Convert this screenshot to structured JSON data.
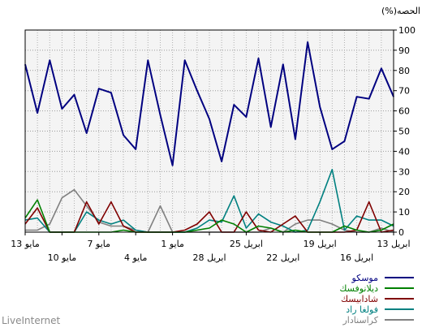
{
  "chart_data": {
    "type": "line",
    "title": "",
    "ylabel": "(%)الحصه",
    "ylim": [
      0,
      100
    ],
    "y_ticks": [
      0,
      10,
      20,
      30,
      40,
      50,
      60,
      70,
      80,
      90,
      100
    ],
    "y_axis_side": "right",
    "x_direction": "right-to-left",
    "grid": true,
    "legend_position": "bottom-right",
    "background_color": "#f4f4f4",
    "x_ticks": [
      {
        "index": 0,
        "label": "13 ابريل",
        "row": 1
      },
      {
        "index": 3,
        "label": "16 ابريل",
        "row": 2
      },
      {
        "index": 6,
        "label": "19 ابريل",
        "row": 1
      },
      {
        "index": 9,
        "label": "22 ابريل",
        "row": 2
      },
      {
        "index": 12,
        "label": "25 ابريل",
        "row": 1
      },
      {
        "index": 15,
        "label": "28 ابريل",
        "row": 2
      },
      {
        "index": 18,
        "label": "1 مايو",
        "row": 1
      },
      {
        "index": 21,
        "label": "4 مايو",
        "row": 2
      },
      {
        "index": 24,
        "label": "7 مايو",
        "row": 1
      },
      {
        "index": 27,
        "label": "10 مايو",
        "row": 2
      },
      {
        "index": 30,
        "label": "13 مايو",
        "row": 1
      }
    ],
    "x_count": 31,
    "series": [
      {
        "name": "موسكو",
        "color": "#000080",
        "values": [
          67,
          81,
          66,
          67,
          45,
          41,
          62,
          94,
          46,
          83,
          52,
          86,
          57,
          63,
          35,
          56,
          70,
          85,
          33,
          58,
          85,
          41,
          48,
          69,
          71,
          49,
          68,
          61,
          85,
          59,
          83
        ]
      },
      {
        "name": "ديلانوفسك",
        "color": "#008000",
        "values": [
          4,
          1,
          0,
          1,
          3,
          0,
          0,
          0,
          1,
          0,
          2,
          3,
          0,
          4,
          6,
          2,
          1,
          0,
          0,
          0,
          0,
          0,
          1,
          0,
          0,
          0,
          0,
          0,
          0,
          16,
          7
        ]
      },
      {
        "name": "شادابيسك",
        "color": "#800000",
        "values": [
          1,
          0,
          15,
          1,
          0,
          0,
          0,
          0,
          8,
          4,
          0,
          1,
          10,
          0,
          0,
          10,
          4,
          1,
          0,
          0,
          0,
          0,
          3,
          15,
          4,
          15,
          0,
          0,
          0,
          12,
          4
        ]
      },
      {
        "name": "فولغا راد",
        "color": "#008080",
        "values": [
          3,
          6,
          6,
          8,
          1,
          31,
          15,
          1,
          0,
          3,
          5,
          9,
          2,
          18,
          5,
          6,
          2,
          0,
          0,
          0,
          0,
          1,
          6,
          4,
          6,
          10,
          0,
          0,
          0,
          7,
          6
        ]
      },
      {
        "name": "كراسنادار",
        "color": "#808080",
        "values": [
          0,
          2,
          0,
          0,
          1,
          4,
          6,
          6,
          4,
          0,
          2,
          0,
          0,
          0,
          0,
          0,
          0,
          0,
          0,
          13,
          0,
          1,
          3,
          3,
          5,
          13,
          21,
          17,
          4,
          1,
          1
        ]
      }
    ]
  },
  "footer": {
    "brand": "LiveInternet"
  }
}
